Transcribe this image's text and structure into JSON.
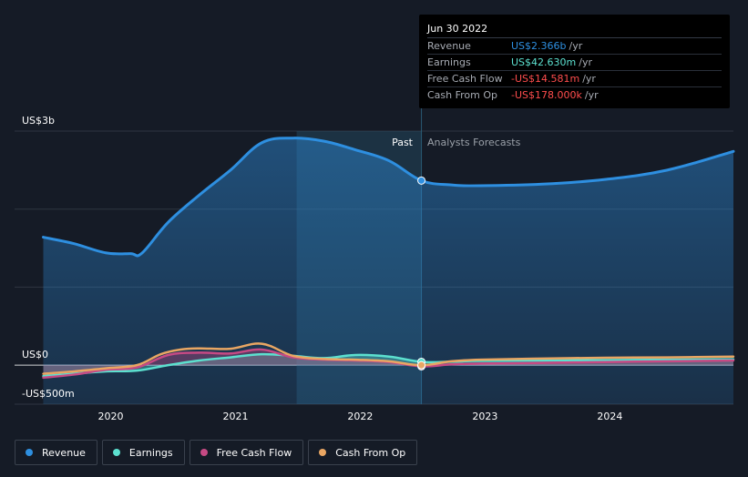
{
  "chart_data": {
    "type": "area",
    "title": "",
    "xlabel": "",
    "ylabel": "",
    "y_axis_labels": [
      "US$3b",
      "US$0",
      "-US$500m"
    ],
    "x_ticks": [
      2020,
      2021,
      2022,
      2023,
      2024
    ],
    "x_tick_labels": [
      "2020",
      "2021",
      "2022",
      "2023",
      "2024"
    ],
    "xlim": [
      2019.23,
      2024.99
    ],
    "ylim": [
      -500,
      3000
    ],
    "y_gridlines": [
      -500,
      0,
      1000,
      2000,
      3000
    ],
    "split_x": 2022.49,
    "highlight_range": [
      2021.49,
      2022.49
    ],
    "period_labels": {
      "past": "Past",
      "forecast": "Analysts Forecasts"
    },
    "series": [
      {
        "name": "Revenue",
        "color": "#2e8fe0",
        "area": true,
        "points": [
          [
            2019.46,
            1640
          ],
          [
            2019.7,
            1560
          ],
          [
            2019.96,
            1440
          ],
          [
            2020.16,
            1430
          ],
          [
            2020.25,
            1435
          ],
          [
            2020.46,
            1830
          ],
          [
            2020.71,
            2180
          ],
          [
            2020.96,
            2500
          ],
          [
            2021.21,
            2850
          ],
          [
            2021.46,
            2910
          ],
          [
            2021.71,
            2870
          ],
          [
            2021.96,
            2760
          ],
          [
            2022.23,
            2620
          ],
          [
            2022.49,
            2366
          ],
          [
            2022.73,
            2310
          ],
          [
            2022.96,
            2300
          ],
          [
            2023.46,
            2320
          ],
          [
            2023.96,
            2380
          ],
          [
            2024.46,
            2500
          ],
          [
            2024.99,
            2740
          ]
        ]
      },
      {
        "name": "Earnings",
        "color": "#5ce0cf",
        "area": true,
        "points": [
          [
            2019.46,
            -140
          ],
          [
            2019.71,
            -110
          ],
          [
            2019.96,
            -80
          ],
          [
            2020.21,
            -70
          ],
          [
            2020.46,
            0
          ],
          [
            2020.71,
            60
          ],
          [
            2020.96,
            100
          ],
          [
            2021.21,
            140
          ],
          [
            2021.46,
            120
          ],
          [
            2021.71,
            90
          ],
          [
            2021.96,
            130
          ],
          [
            2022.23,
            110
          ],
          [
            2022.49,
            42.63
          ],
          [
            2022.73,
            45
          ],
          [
            2022.96,
            55
          ],
          [
            2023.46,
            60
          ],
          [
            2023.96,
            65
          ],
          [
            2024.46,
            70
          ],
          [
            2024.99,
            75
          ]
        ]
      },
      {
        "name": "Free Cash Flow",
        "color": "#c64a84",
        "area": true,
        "points": [
          [
            2019.46,
            -160
          ],
          [
            2019.71,
            -120
          ],
          [
            2019.96,
            -60
          ],
          [
            2020.21,
            -30
          ],
          [
            2020.46,
            130
          ],
          [
            2020.71,
            160
          ],
          [
            2020.96,
            150
          ],
          [
            2021.21,
            200
          ],
          [
            2021.46,
            100
          ],
          [
            2021.71,
            70
          ],
          [
            2021.96,
            60
          ],
          [
            2022.23,
            40
          ],
          [
            2022.49,
            -14.581
          ],
          [
            2022.73,
            10
          ],
          [
            2022.96,
            20
          ],
          [
            2023.46,
            30
          ],
          [
            2023.96,
            40
          ],
          [
            2024.46,
            50
          ],
          [
            2024.99,
            60
          ]
        ]
      },
      {
        "name": "Cash From Op",
        "color": "#e9a663",
        "area": false,
        "points": [
          [
            2019.46,
            -110
          ],
          [
            2019.71,
            -80
          ],
          [
            2019.96,
            -40
          ],
          [
            2020.21,
            0
          ],
          [
            2020.4,
            140
          ],
          [
            2020.56,
            200
          ],
          [
            2020.71,
            215
          ],
          [
            2020.96,
            210
          ],
          [
            2021.21,
            275
          ],
          [
            2021.46,
            120
          ],
          [
            2021.71,
            80
          ],
          [
            2021.96,
            70
          ],
          [
            2022.23,
            50
          ],
          [
            2022.49,
            -0.178
          ],
          [
            2022.73,
            50
          ],
          [
            2022.96,
            70
          ],
          [
            2023.46,
            85
          ],
          [
            2023.96,
            95
          ],
          [
            2024.46,
            100
          ],
          [
            2024.99,
            110
          ]
        ]
      }
    ]
  },
  "tooltip": {
    "date": "Jun 30 2022",
    "rows": [
      {
        "label": "Revenue",
        "value": "US$2.366b",
        "unit": "/yr",
        "color": "#2e8fe0"
      },
      {
        "label": "Earnings",
        "value": "US$42.630m",
        "unit": "/yr",
        "color": "#5ce0cf"
      },
      {
        "label": "Free Cash Flow",
        "value": "-US$14.581m",
        "unit": "/yr",
        "color": "#ff4d4d"
      },
      {
        "label": "Cash From Op",
        "value": "-US$178.000k",
        "unit": "/yr",
        "color": "#ff4d4d"
      }
    ]
  },
  "legend": [
    {
      "label": "Revenue",
      "color": "#2e8fe0"
    },
    {
      "label": "Earnings",
      "color": "#5ce0cf"
    },
    {
      "label": "Free Cash Flow",
      "color": "#c64a84"
    },
    {
      "label": "Cash From Op",
      "color": "#e9a663"
    }
  ]
}
